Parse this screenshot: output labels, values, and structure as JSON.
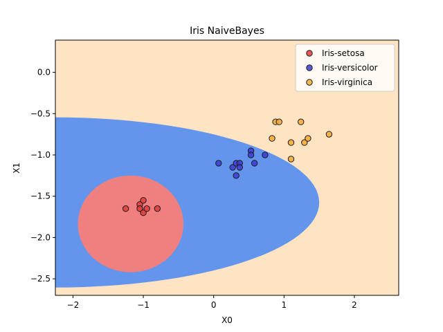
{
  "chart_data": {
    "type": "scatter",
    "title": "Iris NaiveBayes",
    "xlabel": "X0",
    "ylabel": "X1",
    "xlim": [
      -2.25,
      2.63
    ],
    "ylim": [
      -2.7,
      0.39
    ],
    "xticks": [
      {
        "value": -2,
        "label": "−2"
      },
      {
        "value": -1,
        "label": "−1"
      },
      {
        "value": 0,
        "label": "0"
      },
      {
        "value": 1,
        "label": "1"
      },
      {
        "value": 2,
        "label": "2"
      }
    ],
    "yticks": [
      {
        "value": 0.0,
        "label": "0.0"
      },
      {
        "value": -0.5,
        "label": "−0.5"
      },
      {
        "value": -1.0,
        "label": "−1.0"
      },
      {
        "value": -1.5,
        "label": "−1.5"
      },
      {
        "value": -2.0,
        "label": "−2.0"
      },
      {
        "value": -2.5,
        "label": "−2.5"
      }
    ],
    "grid": false,
    "legend_position": "top-right",
    "decision_regions": {
      "background_color": "#ffe4c4",
      "regions": [
        {
          "class": "Iris-versicolor",
          "color": "#6495ed",
          "shape": "half-ellipse-open-left",
          "center": [
            -2.25,
            -1.575
          ],
          "x_extent": [
            -2.25,
            1.5
          ],
          "y_extent": [
            -2.6,
            -0.54
          ]
        },
        {
          "class": "Iris-setosa",
          "color": "#f08080",
          "shape": "ellipse",
          "center": [
            -1.18,
            -1.835
          ],
          "x_extent": [
            -1.93,
            -0.43
          ],
          "y_extent": [
            -2.42,
            -1.25
          ]
        }
      ]
    },
    "series": [
      {
        "name": "Iris-setosa",
        "color": "#e23b3b",
        "points": [
          {
            "x": -1.25,
            "y": -1.65
          },
          {
            "x": -1.05,
            "y": -1.6
          },
          {
            "x": -1.05,
            "y": -1.65
          },
          {
            "x": -1.0,
            "y": -1.55
          },
          {
            "x": -1.0,
            "y": -1.7
          },
          {
            "x": -0.95,
            "y": -1.65
          },
          {
            "x": -0.8,
            "y": -1.65
          }
        ]
      },
      {
        "name": "Iris-versicolor",
        "color": "#3c3cd2",
        "points": [
          {
            "x": 0.07,
            "y": -1.1
          },
          {
            "x": 0.27,
            "y": -1.15
          },
          {
            "x": 0.32,
            "y": -1.1
          },
          {
            "x": 0.32,
            "y": -1.25
          },
          {
            "x": 0.37,
            "y": -1.1
          },
          {
            "x": 0.37,
            "y": -1.15
          },
          {
            "x": 0.53,
            "y": -0.95
          },
          {
            "x": 0.53,
            "y": -1.0
          },
          {
            "x": 0.58,
            "y": -1.1
          },
          {
            "x": 0.73,
            "y": -1.0
          }
        ]
      },
      {
        "name": "Iris-virginica",
        "color": "#f5a935",
        "points": [
          {
            "x": 0.83,
            "y": -0.8
          },
          {
            "x": 0.88,
            "y": -0.6
          },
          {
            "x": 0.93,
            "y": -0.6
          },
          {
            "x": 1.1,
            "y": -0.85
          },
          {
            "x": 1.1,
            "y": -1.05
          },
          {
            "x": 1.24,
            "y": -0.6
          },
          {
            "x": 1.29,
            "y": -0.85
          },
          {
            "x": 1.34,
            "y": -0.8
          },
          {
            "x": 1.64,
            "y": -0.75
          }
        ]
      }
    ]
  }
}
